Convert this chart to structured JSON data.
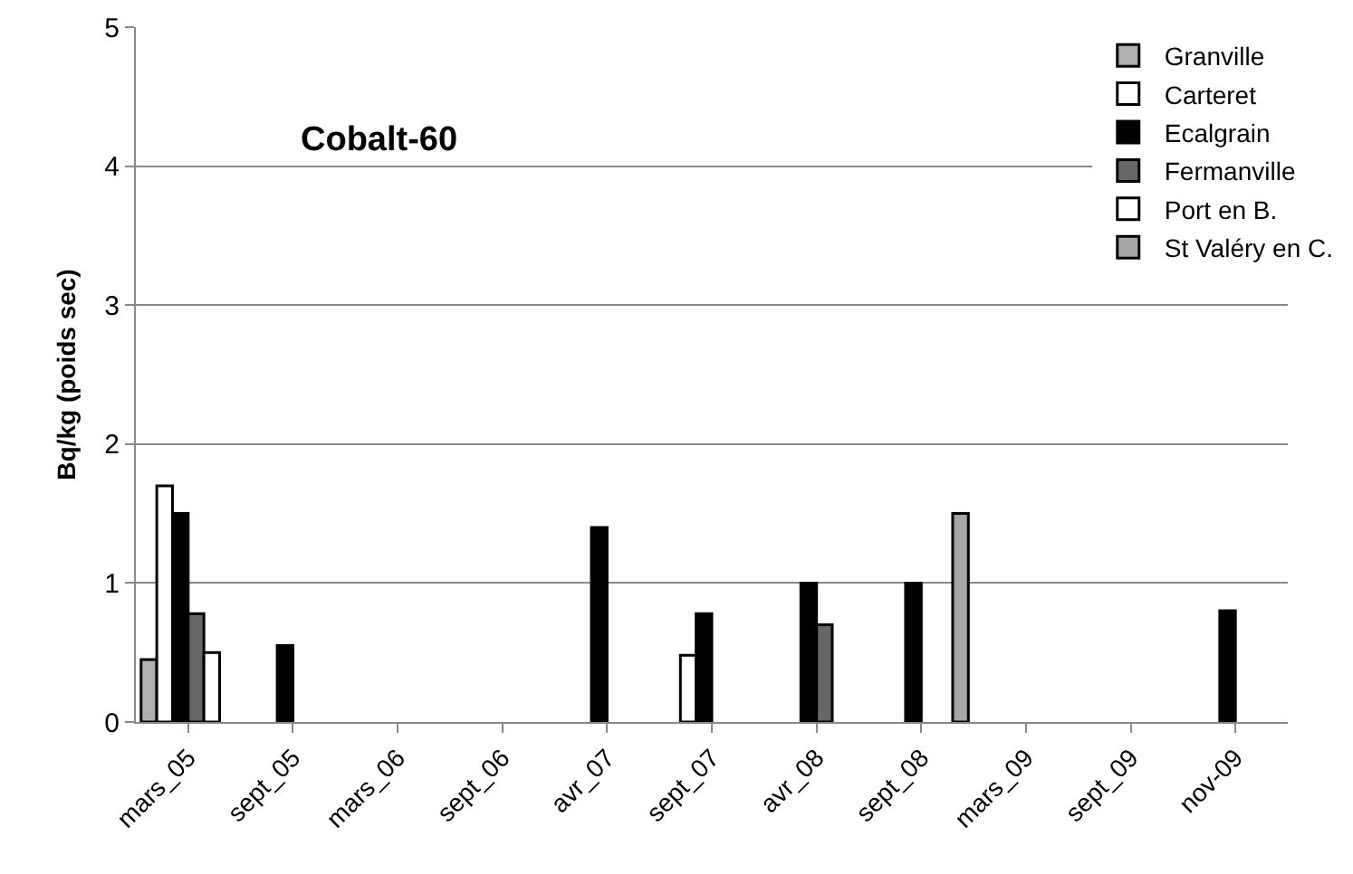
{
  "chart_data": {
    "type": "bar",
    "title": "Cobalt-60",
    "ylabel": "Bq/kg (poids sec)",
    "categories": [
      "mars_05",
      "sept_05",
      "mars_06",
      "sept_06",
      "avr_07",
      "sept_07",
      "avr_08",
      "sept_08",
      "mars_09",
      "sept_09",
      "nov-09"
    ],
    "series": [
      {
        "name": "Granville",
        "color": "#b0b0b0",
        "values": [
          0.45,
          null,
          null,
          null,
          null,
          null,
          null,
          null,
          null,
          null,
          null
        ]
      },
      {
        "name": "Carteret",
        "color": "#ffffff",
        "values": [
          1.7,
          null,
          null,
          null,
          null,
          0.48,
          null,
          null,
          null,
          null,
          null
        ]
      },
      {
        "name": "Ecalgrain",
        "color": "#000000",
        "values": [
          1.5,
          0.55,
          null,
          null,
          1.4,
          0.78,
          1.0,
          1.0,
          null,
          null,
          0.8
        ]
      },
      {
        "name": "Fermanville",
        "color": "#666666",
        "values": [
          0.78,
          null,
          null,
          null,
          null,
          null,
          0.7,
          null,
          null,
          null,
          null
        ]
      },
      {
        "name": "Port en B.",
        "color": "#ffffff",
        "values": [
          0.5,
          null,
          null,
          null,
          null,
          null,
          null,
          null,
          null,
          null,
          null
        ]
      },
      {
        "name": "St Valéry en C.",
        "color": "#a6a6a6",
        "values": [
          null,
          null,
          null,
          null,
          null,
          null,
          null,
          1.5,
          null,
          null,
          null
        ]
      }
    ],
    "ylim": [
      0,
      5
    ],
    "yticks": [
      0,
      1,
      2,
      3,
      4,
      5
    ],
    "grid": "y",
    "legend": "top right"
  }
}
